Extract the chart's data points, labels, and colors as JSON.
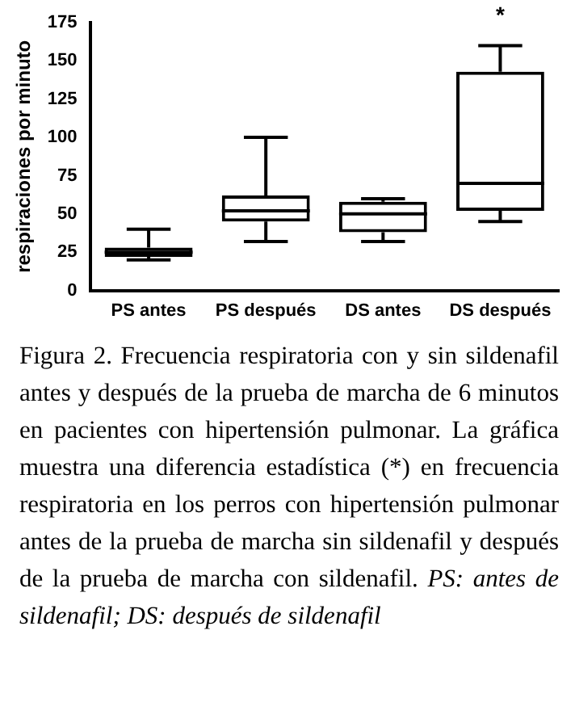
{
  "chart_data": {
    "type": "box",
    "ylabel": "respiraciones por minuto",
    "categories": [
      "PS antes",
      "PS después",
      "DS antes",
      "DS después"
    ],
    "boxes": [
      {
        "low": 20,
        "q1": 22,
        "median": 25,
        "q3": 28,
        "high": 40
      },
      {
        "low": 32,
        "q1": 45,
        "median": 52,
        "q3": 62,
        "high": 100
      },
      {
        "low": 32,
        "q1": 38,
        "median": 50,
        "q3": 58,
        "high": 60
      },
      {
        "low": 45,
        "q1": 52,
        "median": 70,
        "q3": 143,
        "high": 160
      }
    ],
    "color": "#000000",
    "ylim": [
      0,
      175
    ],
    "yticks": [
      0,
      25,
      50,
      75,
      100,
      125,
      150,
      175
    ],
    "grid": false,
    "legend": false,
    "annotations": [
      "*",
      "Figura 2. Frecuencia respiratoria con y sin sildenafil antes y después de la prueba de marcha de 6 minutos en pacientes con hipertensión pulmonar. La gráfica muestra una diferencia estadística (*) en frecuencia respiratoria en los perros con hipertensión pulmonar antes de la prueba de marcha sin sildenafil y después de la prueba de marcha con sildenafil.",
      "PS: antes de sildenafil; DS: después de sildenafil"
    ]
  }
}
